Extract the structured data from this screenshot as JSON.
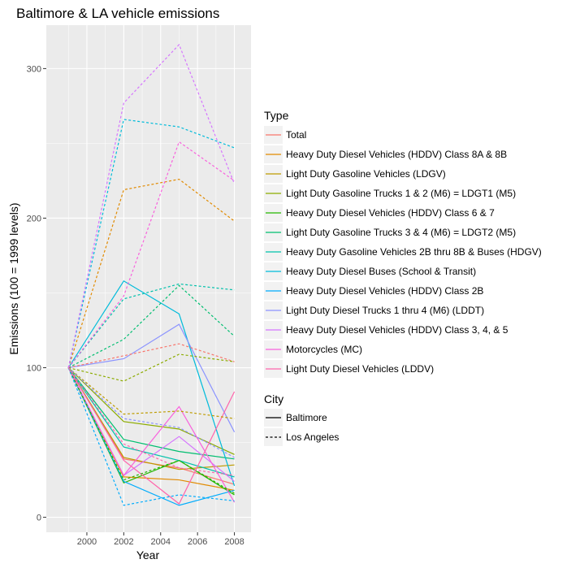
{
  "chart_data": {
    "type": "line",
    "title": "Baltimore & LA vehicle emissions",
    "xlabel": "Year",
    "ylabel": "Emissions (100 = 1999 levels)",
    "x": [
      1999,
      2002,
      2005,
      2008
    ],
    "xlim": [
      1997.8,
      2008.9
    ],
    "ylim": [
      -10,
      329
    ],
    "xticks": [
      2000,
      2002,
      2004,
      2006,
      2008
    ],
    "yticks": [
      0,
      100,
      200,
      300
    ],
    "grid": true,
    "background": "#ebebeb",
    "legend": {
      "position": "right",
      "type_title": "Type",
      "city_title": "City",
      "types": [
        {
          "name": "Total",
          "color": "#f8766d"
        },
        {
          "name": "Heavy Duty Diesel Vehicles (HDDV) Class 8A & 8B",
          "color": "#e18a00"
        },
        {
          "name": "Light Duty Gasoline Vehicles (LDGV)",
          "color": "#be9c00"
        },
        {
          "name": "Light Duty Gasoline Trucks 1 & 2 (M6) = LDGT1 (M5)",
          "color": "#8cab00"
        },
        {
          "name": "Heavy Duty Diesel Vehicles (HDDV) Class 6 & 7",
          "color": "#24b700"
        },
        {
          "name": "Light Duty Gasoline Trucks 3 & 4 (M6) = LDGT2 (M5)",
          "color": "#00be70"
        },
        {
          "name": "Heavy Duty Gasoline Vehicles 2B thru 8B & Buses (HDGV)",
          "color": "#00c1ab"
        },
        {
          "name": "Heavy Duty Diesel Buses (School & Transit)",
          "color": "#00bbda"
        },
        {
          "name": "Heavy Duty Diesel Vehicles (HDDV) Class 2B",
          "color": "#00acfc"
        },
        {
          "name": "Light Duty Diesel Trucks 1 thru 4 (M6) (LDDT)",
          "color": "#8b93ff"
        },
        {
          "name": "Heavy Duty Diesel Vehicles (HDDV) Class 3, 4, & 5",
          "color": "#d575fe"
        },
        {
          "name": "Motorcycles (MC)",
          "color": "#f962dd"
        },
        {
          "name": "Light Duty Diesel Vehicles (LDDV)",
          "color": "#ff65ac"
        }
      ],
      "cities": [
        {
          "name": "Baltimore",
          "dash": "solid"
        },
        {
          "name": "Los Angeles",
          "dash": "dotted"
        }
      ]
    },
    "series": [
      {
        "type": 0,
        "city": 0,
        "values": [
          100,
          39,
          33,
          22
        ]
      },
      {
        "type": 1,
        "city": 0,
        "values": [
          100,
          27,
          25,
          18
        ]
      },
      {
        "type": 2,
        "city": 0,
        "values": [
          100,
          40,
          32,
          35
        ]
      },
      {
        "type": 3,
        "city": 0,
        "values": [
          100,
          64,
          59,
          42
        ]
      },
      {
        "type": 4,
        "city": 0,
        "values": [
          100,
          23,
          38,
          15
        ]
      },
      {
        "type": 5,
        "city": 0,
        "values": [
          100,
          52,
          44,
          39
        ]
      },
      {
        "type": 6,
        "city": 0,
        "values": [
          100,
          47,
          38,
          27
        ]
      },
      {
        "type": 7,
        "city": 0,
        "values": [
          100,
          158,
          136,
          21
        ]
      },
      {
        "type": 8,
        "city": 0,
        "values": [
          100,
          24,
          8,
          18
        ]
      },
      {
        "type": 9,
        "city": 0,
        "values": [
          100,
          106,
          129,
          57
        ]
      },
      {
        "type": 10,
        "city": 0,
        "values": [
          100,
          28,
          54,
          24
        ]
      },
      {
        "type": 11,
        "city": 0,
        "values": [
          100,
          28,
          74,
          10
        ]
      },
      {
        "type": 12,
        "city": 0,
        "values": [
          100,
          38,
          9,
          84
        ]
      },
      {
        "type": 0,
        "city": 1,
        "values": [
          100,
          108,
          116,
          104
        ]
      },
      {
        "type": 1,
        "city": 1,
        "values": [
          100,
          219,
          226,
          198
        ]
      },
      {
        "type": 2,
        "city": 1,
        "values": [
          100,
          69,
          71,
          66
        ]
      },
      {
        "type": 3,
        "city": 1,
        "values": [
          100,
          91,
          109,
          104
        ]
      },
      {
        "type": 4,
        "city": 1,
        "values": [
          100,
          25,
          38,
          16
        ]
      },
      {
        "type": 5,
        "city": 1,
        "values": [
          100,
          119,
          155,
          121
        ]
      },
      {
        "type": 6,
        "city": 1,
        "values": [
          100,
          146,
          156,
          152
        ]
      },
      {
        "type": 7,
        "city": 1,
        "values": [
          100,
          266,
          261,
          247
        ]
      },
      {
        "type": 8,
        "city": 1,
        "values": [
          100,
          8,
          15,
          11
        ]
      },
      {
        "type": 9,
        "city": 1,
        "values": [
          100,
          66,
          60,
          40
        ]
      },
      {
        "type": 10,
        "city": 1,
        "values": [
          100,
          277,
          316,
          223
        ]
      },
      {
        "type": 11,
        "city": 1,
        "values": [
          100,
          148,
          251,
          225
        ]
      },
      {
        "type": 12,
        "city": 1,
        "values": [
          100,
          49,
          33,
          28
        ]
      }
    ]
  }
}
